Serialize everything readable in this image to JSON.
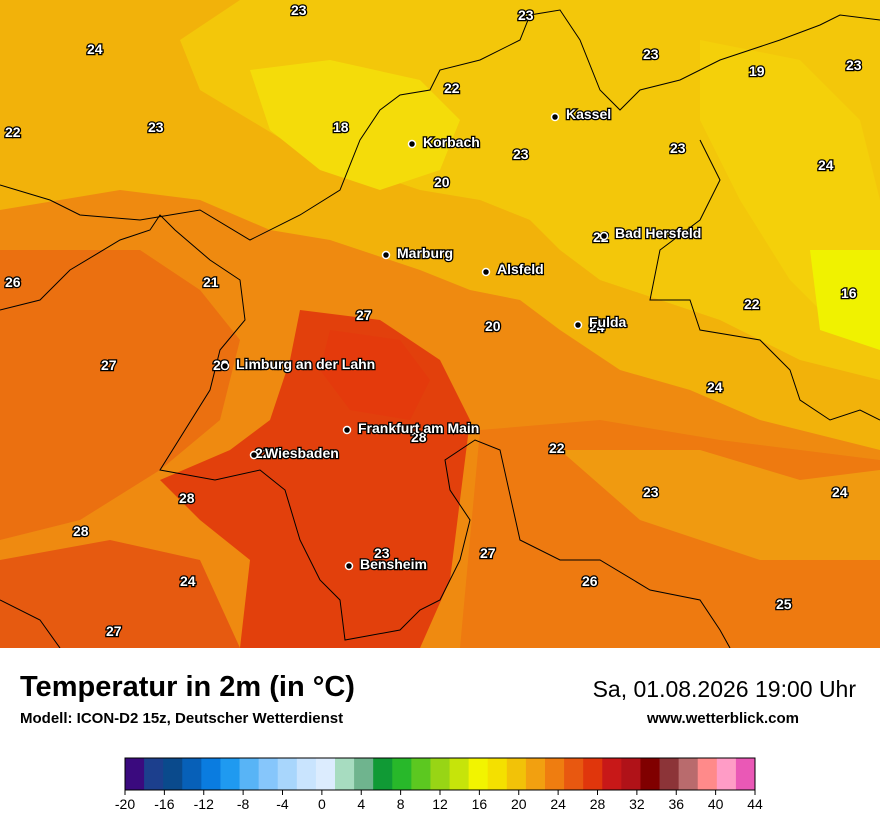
{
  "title": "Temperatur in 2m (in °C)",
  "model": "Modell: ICON-D2 15z, Deutscher Wetterdienst",
  "datetime": "Sa, 01.08.2026 19:00 Uhr",
  "website": "www.wetterblick.com",
  "cities": [
    {
      "name": "Kassel"
    },
    {
      "name": "Korbach"
    },
    {
      "name": "Bad Hersfeld"
    },
    {
      "name": "Marburg"
    },
    {
      "name": "Alsfeld"
    },
    {
      "name": "Fulda"
    },
    {
      "name": "Limburg an der Lahn"
    },
    {
      "name": "Frankfurt am Main"
    },
    {
      "name": "Wiesbaden"
    },
    {
      "name": "Bensheim"
    }
  ],
  "temperature_labels": [
    "23",
    "23",
    "24",
    "22",
    "23",
    "18",
    "22",
    "23",
    "19",
    "23",
    "23",
    "24",
    "20",
    "23",
    "22",
    "26",
    "21",
    "27",
    "24",
    "22",
    "16",
    "27",
    "20",
    "24",
    "28",
    "22",
    "22",
    "28",
    "23",
    "24",
    "28",
    "23",
    "27",
    "24",
    "26",
    "27",
    "25",
    "28"
  ],
  "legend": {
    "ticks": [
      "-20",
      "-16",
      "-12",
      "-8",
      "-4",
      "0",
      "4",
      "8",
      "12",
      "16",
      "20",
      "24",
      "28",
      "32",
      "36",
      "40",
      "44"
    ],
    "colors": [
      "#3a0a7e",
      "#1c3f8d",
      "#0a4a8c",
      "#0760b8",
      "#0a7ce0",
      "#1f9af0",
      "#58b4f6",
      "#86c6fb",
      "#a8d6fc",
      "#c9e4fe",
      "#dcecfe",
      "#a7dcc0",
      "#6fb48e",
      "#109a35",
      "#28b82a",
      "#5cc820",
      "#98d515",
      "#c6e40a",
      "#f2f400",
      "#f4e000",
      "#f2c208",
      "#f2a010",
      "#ef7d10",
      "#e85810",
      "#e0360c",
      "#c81818",
      "#b01218",
      "#800000",
      "#8c3438",
      "#b96b6d",
      "#ff8a8a",
      "#ff9cc6",
      "#ea58b6"
    ]
  }
}
